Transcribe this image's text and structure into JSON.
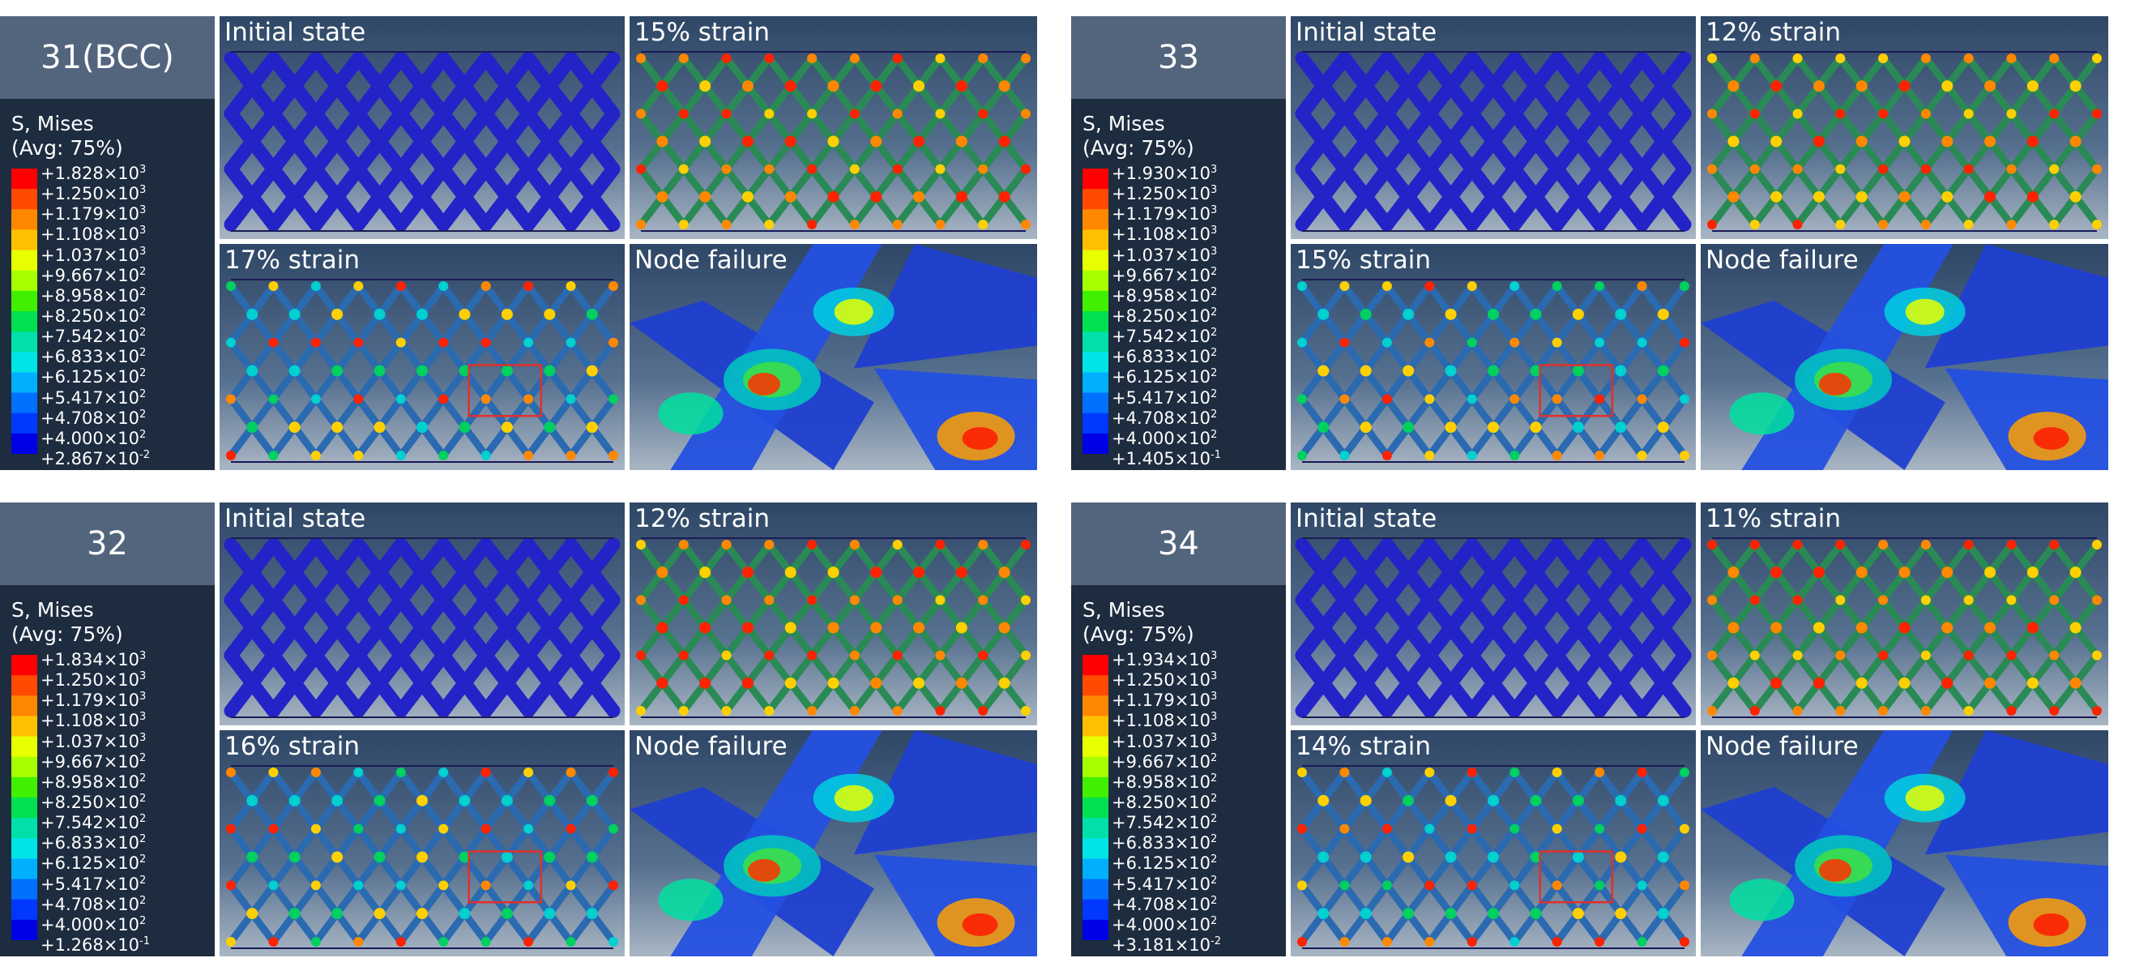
{
  "legend_values": [
    "+1.250×10",
    "+1.179×10",
    "+1.108×10",
    "+1.037×10",
    "+9.667×10",
    "+8.958×10",
    "+8.250×10",
    "+7.542×10",
    "+6.833×10",
    "+6.125×10",
    "+5.417×10",
    "+4.708×10",
    "+4.000×10"
  ],
  "legend_exponents": [
    "3",
    "3",
    "3",
    "3",
    "2",
    "2",
    "2",
    "2",
    "2",
    "2",
    "2",
    "2",
    "2"
  ],
  "legend_colors": [
    "#ff0000",
    "#ff4a00",
    "#ff8800",
    "#ffc000",
    "#e8ff00",
    "#a6ff00",
    "#40f000",
    "#00e050",
    "#00e0a8",
    "#00e4e8",
    "#00b0ff",
    "#0070ff",
    "#0038ff",
    "#0000e6"
  ],
  "panels": [
    {
      "id": "31(BCC)",
      "legend_label": [
        "S, Mises",
        "(Avg: 75%)"
      ],
      "max_value": "+1.828×10",
      "max_exp": "3",
      "min_value": "+2.867×10",
      "min_exp": "-2",
      "images": {
        "a": "Initial state",
        "b": "15% strain",
        "c": "17% strain",
        "d": "Node failure"
      }
    },
    {
      "id": "33",
      "legend_label": [
        "S, Mises",
        "(Avg: 75%)"
      ],
      "max_value": "+1.930×10",
      "max_exp": "3",
      "min_value": "+1.405×10",
      "min_exp": "-1",
      "images": {
        "a": "Initial state",
        "b": "12% strain",
        "c": "15% strain",
        "d": "Node failure"
      }
    },
    {
      "id": "32",
      "legend_label": [
        "S, Mises",
        "(Avg: 75%)"
      ],
      "max_value": "+1.834×10",
      "max_exp": "3",
      "min_value": "+1.268×10",
      "min_exp": "-1",
      "images": {
        "a": "Initial state",
        "b": "12% strain",
        "c": "16% strain",
        "d": "Node failure"
      }
    },
    {
      "id": "34",
      "legend_label": [
        "S, Mises",
        "(Avg: 75%)"
      ],
      "max_value": "+1.934×10",
      "max_exp": "3",
      "min_value": "+3.181×10",
      "min_exp": "-2",
      "images": {
        "a": "Initial state",
        "b": "11% strain",
        "c": "14% strain",
        "d": "Node failure"
      }
    }
  ]
}
